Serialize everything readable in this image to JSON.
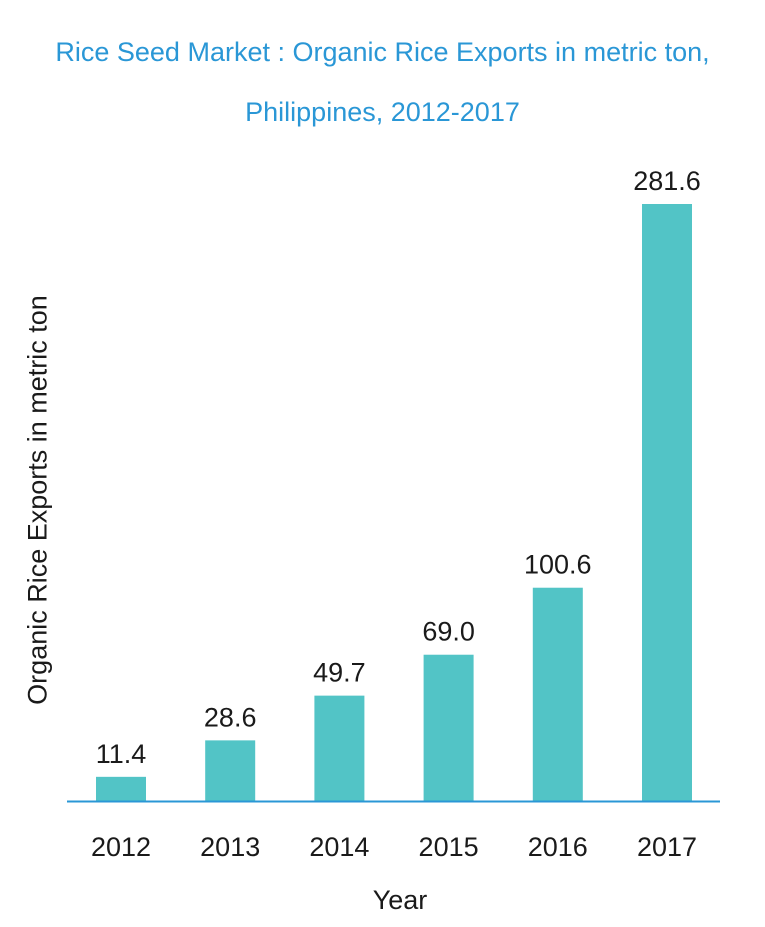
{
  "chart_data": {
    "type": "bar",
    "title": "Rice Seed Market : Organic Rice Exports in metric ton, Philippines, 2012-2017",
    "xlabel": "Year",
    "ylabel": "Organic Rice Exports in metric ton",
    "categories": [
      "2012",
      "2013",
      "2014",
      "2015",
      "2016",
      "2017"
    ],
    "values": [
      11.4,
      28.6,
      49.7,
      69.0,
      100.6,
      281.6
    ],
    "value_labels": [
      "11.4",
      "28.6",
      "49.7",
      "69.0",
      "100.6",
      "281.6"
    ],
    "ylim": [
      0,
      281.6
    ],
    "grid": false,
    "legend": "none",
    "colors": {
      "bar": "#52c4c6",
      "axis": "#2a97d6",
      "title": "#2a97d6",
      "text": "#1a1a1a"
    }
  }
}
